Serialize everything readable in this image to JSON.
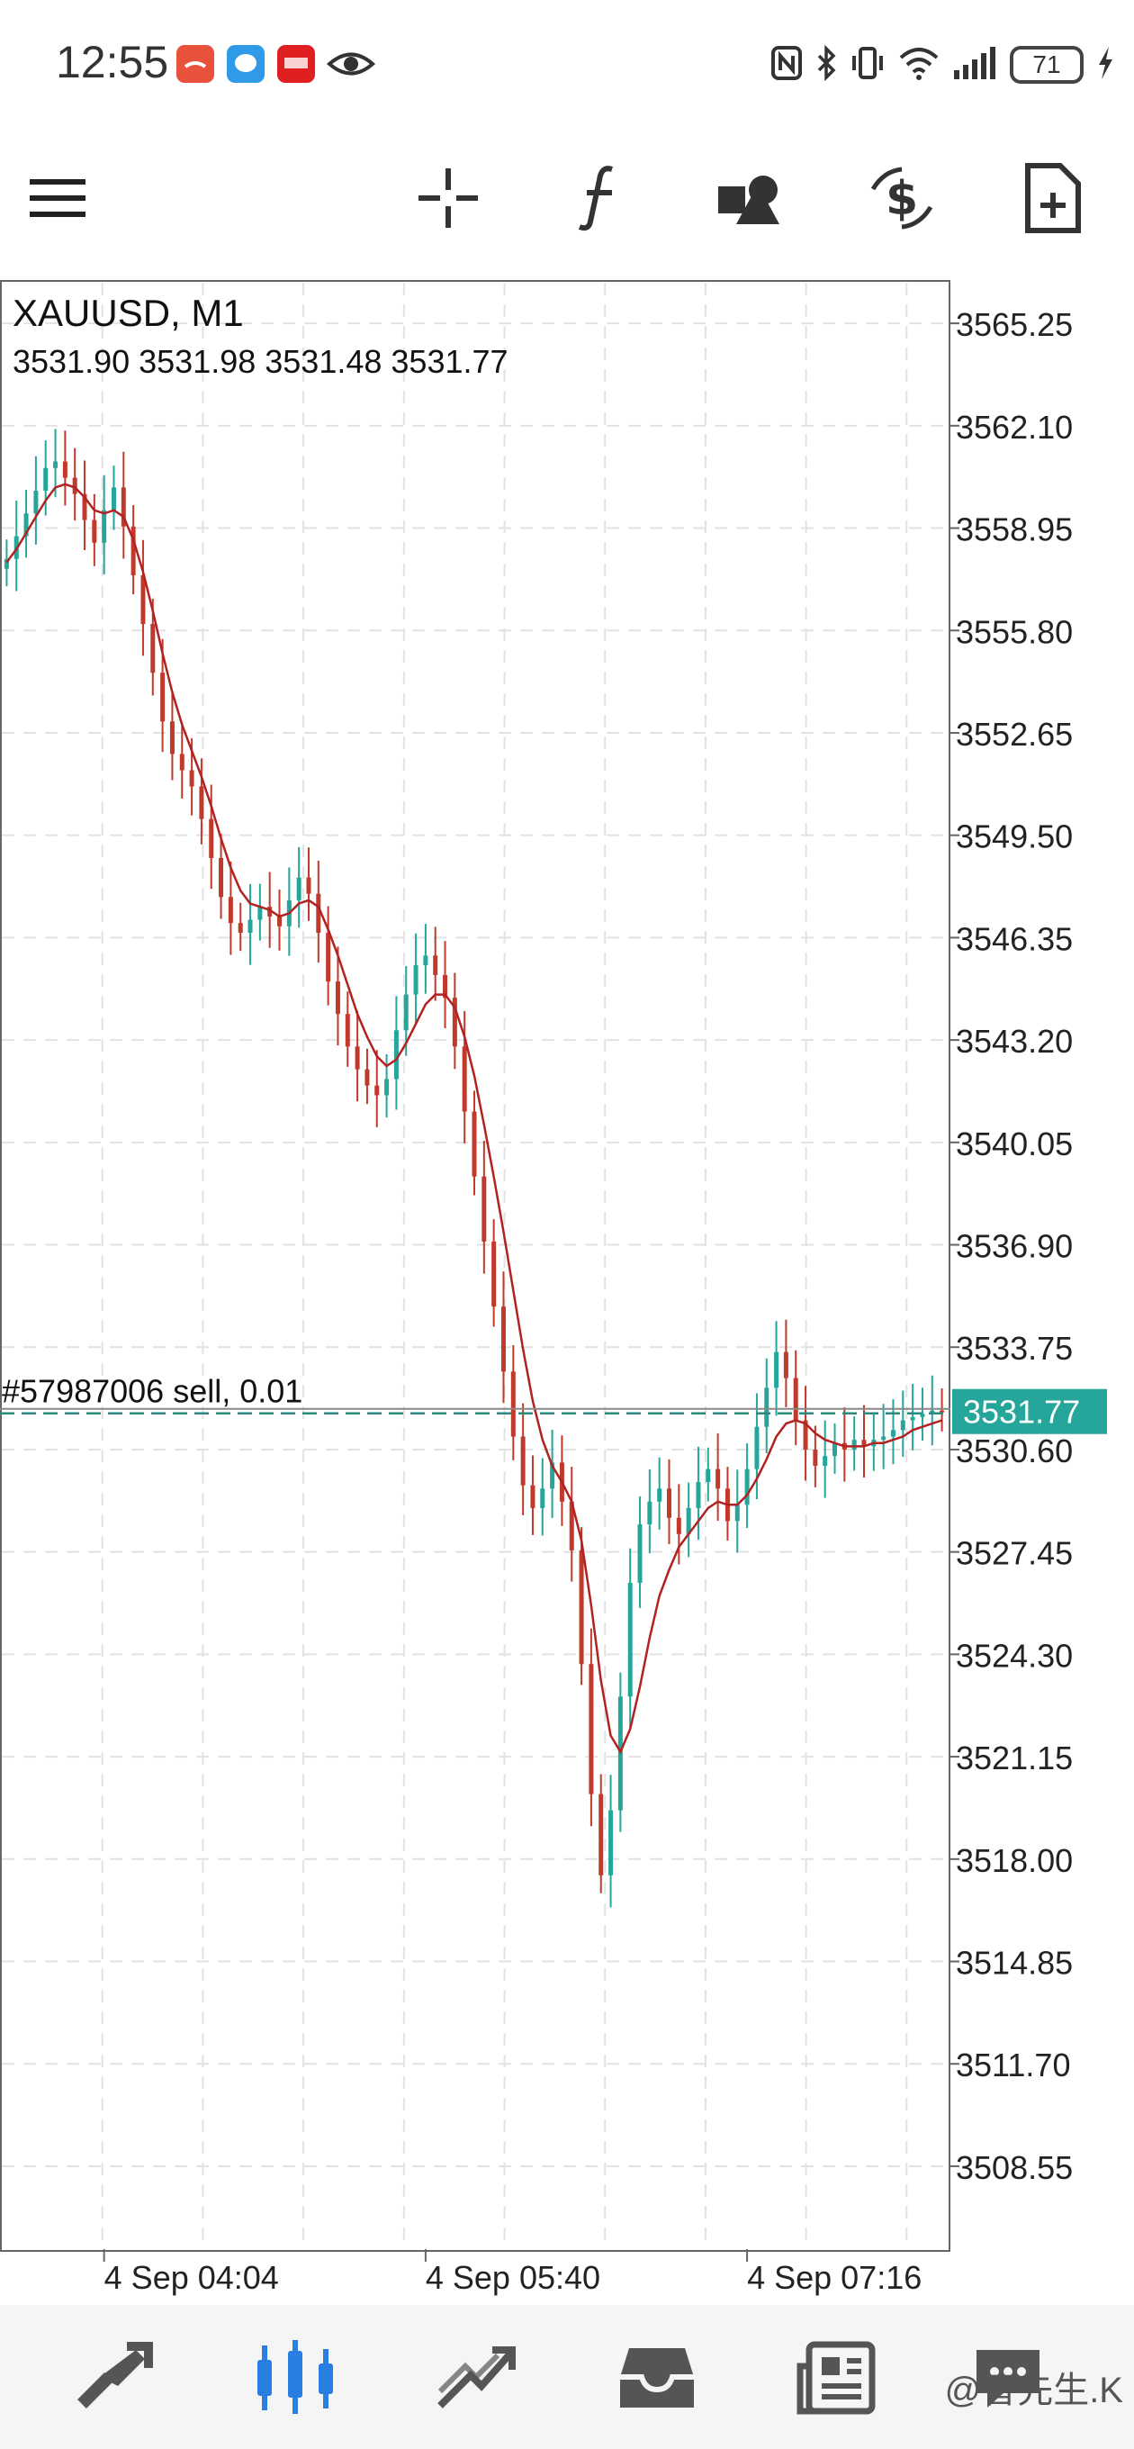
{
  "status_bar": {
    "time": "12:55",
    "battery": "71",
    "notification_icons": [
      "missed-call-icon",
      "messages-icon",
      "news-app-icon",
      "eye-icon"
    ],
    "system_icons": [
      "nfc-icon",
      "bluetooth-icon",
      "vibrate-icon",
      "wifi-icon",
      "signal-icon",
      "charging-icon"
    ]
  },
  "toolbar": {
    "icons": [
      "menu-icon",
      "crosshair-icon",
      "indicators-icon",
      "objects-icon",
      "trade-icon",
      "new-order-icon"
    ]
  },
  "chart": {
    "symbol_timeframe": "XAUUSD, M1",
    "ohlc": "3531.90 3531.98 3531.48 3531.77",
    "order_label": "#57987006 sell, 0.01",
    "current_price": "3531.77",
    "price_ticks": [
      "3565.25",
      "3562.10",
      "3558.95",
      "3555.80",
      "3552.65",
      "3549.50",
      "3546.35",
      "3543.20",
      "3540.05",
      "3536.90",
      "3533.75",
      "3530.60",
      "3527.45",
      "3524.30",
      "3521.15",
      "3518.00",
      "3514.85",
      "3511.70",
      "3508.55"
    ],
    "time_ticks": [
      "4 Sep 04:04",
      "4 Sep 05:40",
      "4 Sep 07:16"
    ],
    "colors": {
      "bullish": "#26a69a",
      "bearish": "#c0392b",
      "ma": "#b22222",
      "price_tag": "#26a69a"
    }
  },
  "chart_data": {
    "type": "candlestick",
    "series": [
      {
        "values": [
          3558.0,
          3558.7,
          3559.4,
          3560.1,
          3560.8,
          3561.0,
          3560.5,
          3560.0,
          3559.2,
          3558.5,
          3559.5,
          3560.2,
          3559.0,
          3557.5,
          3556.0,
          3554.5,
          3553.0,
          3552.0,
          3551.5,
          3551.0,
          3550.0,
          3548.8,
          3547.6,
          3546.8,
          3546.5,
          3546.9,
          3547.3,
          3547.0,
          3546.7,
          3547.5,
          3548.2,
          3547.7,
          3546.5,
          3545.0,
          3544.0,
          3543.0,
          3542.3,
          3541.8,
          3541.5,
          3542.0,
          3543.5,
          3544.6,
          3545.5,
          3545.8,
          3545.2,
          3544.5,
          3543.0,
          3541.0,
          3539.0,
          3537.0,
          3535.0,
          3533.0,
          3531.0,
          3529.5,
          3528.8,
          3529.4,
          3530.2,
          3529.0,
          3527.5,
          3524.0,
          3520.0,
          3517.5,
          3519.5,
          3523.0,
          3526.5,
          3528.3,
          3529.0,
          3529.4,
          3528.5,
          3528.0,
          3528.8,
          3529.6,
          3530.0,
          3529.4,
          3528.4,
          3528.9,
          3530.0,
          3531.3,
          3532.5,
          3533.6,
          3532.8,
          3531.5,
          3530.6,
          3530.1,
          3530.4,
          3530.8,
          3530.6,
          3530.9,
          3530.7,
          3530.9,
          3531.0,
          3531.2,
          3531.5,
          3531.6,
          3531.7,
          3531.8,
          3531.77
        ]
      }
    ],
    "ma_values": [
      3557.9,
      3558.3,
      3558.8,
      3559.3,
      3559.8,
      3560.2,
      3560.3,
      3560.2,
      3559.9,
      3559.5,
      3559.4,
      3559.5,
      3559.3,
      3558.6,
      3557.6,
      3556.4,
      3555.1,
      3553.9,
      3552.9,
      3552.1,
      3551.3,
      3550.4,
      3549.4,
      3548.5,
      3547.8,
      3547.4,
      3547.3,
      3547.2,
      3547.0,
      3547.1,
      3547.4,
      3547.5,
      3547.3,
      3546.6,
      3545.8,
      3544.9,
      3544.0,
      3543.3,
      3542.7,
      3542.4,
      3542.6,
      3543.1,
      3543.7,
      3544.3,
      3544.6,
      3544.6,
      3544.2,
      3543.3,
      3542.1,
      3540.6,
      3539.0,
      3537.3,
      3535.5,
      3533.7,
      3532.1,
      3530.9,
      3530.1,
      3529.6,
      3529.0,
      3527.8,
      3525.8,
      3523.5,
      3521.8,
      3521.3,
      3522.0,
      3523.3,
      3524.8,
      3526.1,
      3526.9,
      3527.6,
      3528.0,
      3528.4,
      3528.8,
      3529.0,
      3528.9,
      3528.9,
      3529.2,
      3529.7,
      3530.3,
      3531.0,
      3531.4,
      3531.5,
      3531.4,
      3531.1,
      3530.9,
      3530.8,
      3530.7,
      3530.7,
      3530.7,
      3530.8,
      3530.8,
      3530.9,
      3531.0,
      3531.2,
      3531.3,
      3531.4,
      3531.5
    ],
    "xlabel": "",
    "ylabel": "",
    "ylim": [
      3506.0,
      3566.5
    ],
    "grid": true
  },
  "bottom_nav": {
    "items": [
      "quotes-icon",
      "chart-icon",
      "trade-tab-icon",
      "history-icon",
      "news-icon",
      "messages-tab-icon"
    ],
    "active": "chart-icon",
    "watermark": "@智先生.K"
  }
}
